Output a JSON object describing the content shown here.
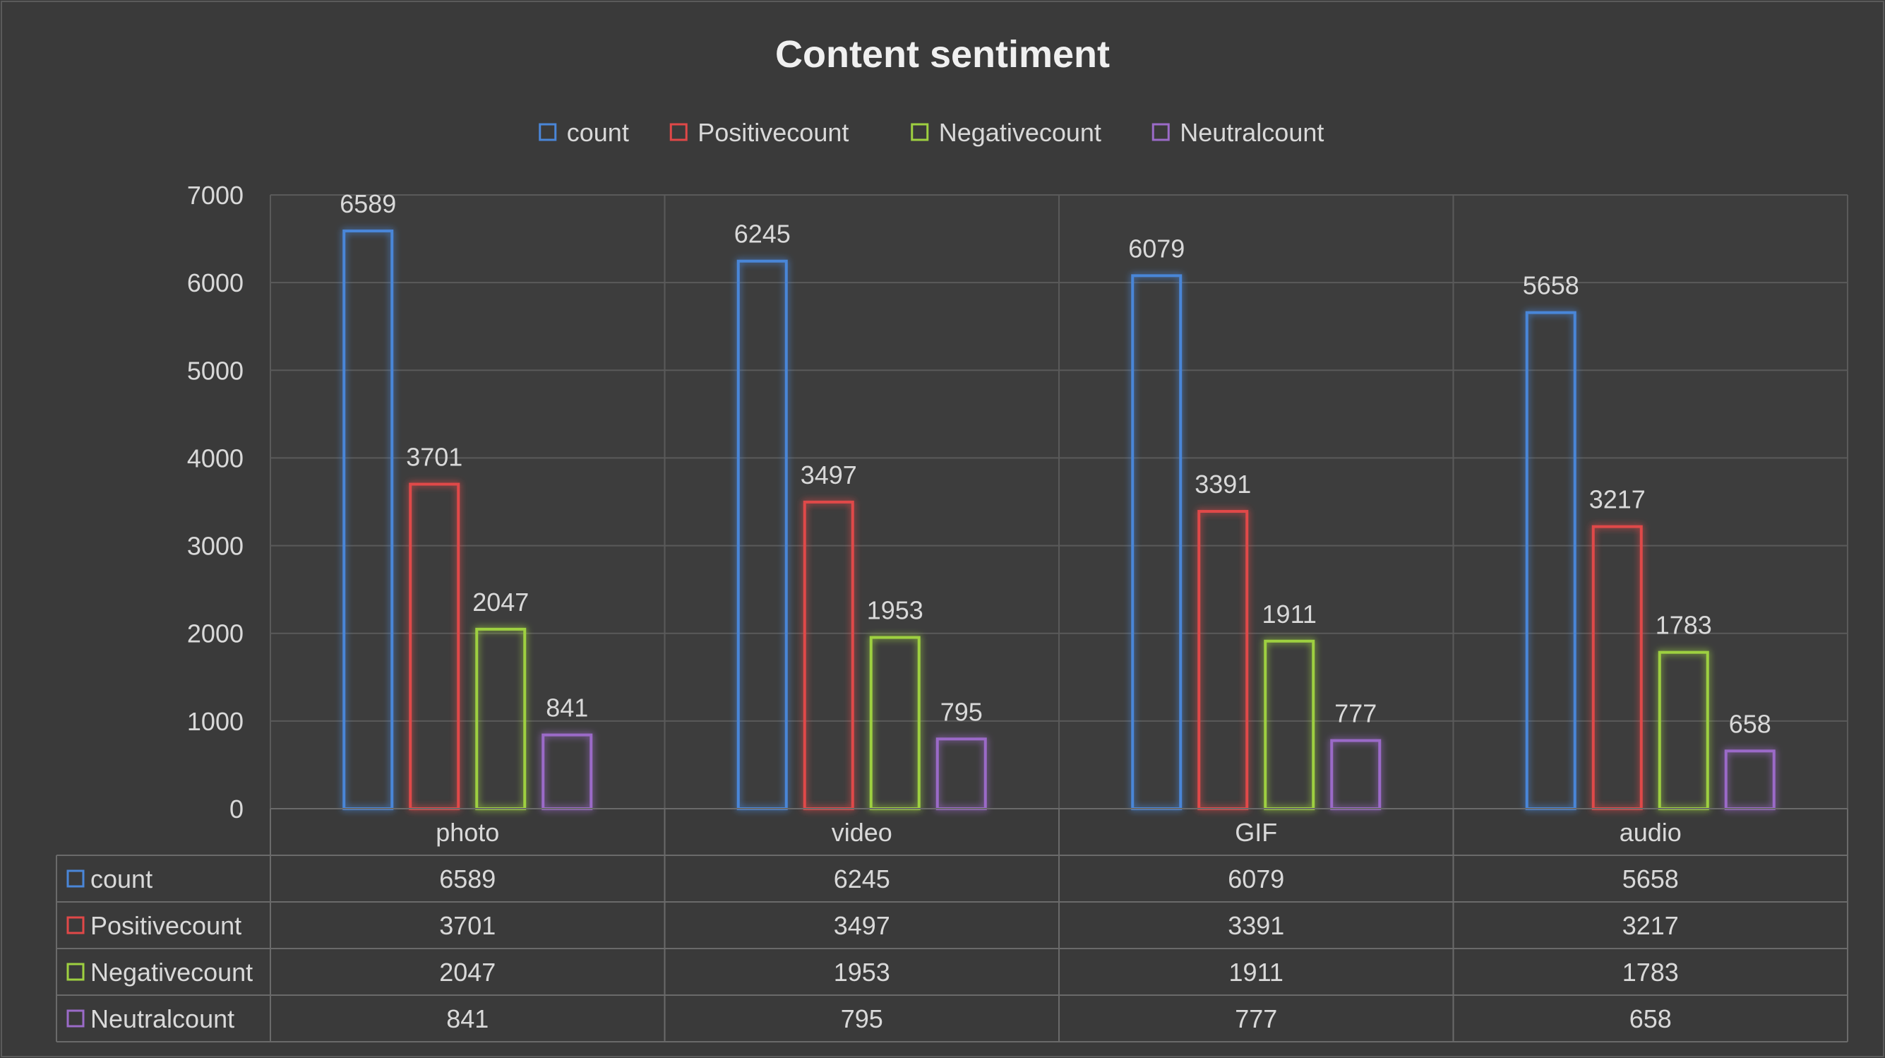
{
  "chart_data": {
    "type": "bar",
    "title": "Content sentiment",
    "categories": [
      "photo",
      "video",
      "GIF",
      "audio"
    ],
    "series": [
      {
        "name": "count",
        "values": [
          6589,
          6245,
          6079,
          5658
        ],
        "color": "#4a86d8"
      },
      {
        "name": "Positivecount",
        "values": [
          3701,
          3497,
          3391,
          3217
        ],
        "color": "#e04848"
      },
      {
        "name": "Negativecount",
        "values": [
          2047,
          1953,
          1911,
          1783
        ],
        "color": "#9ed040"
      },
      {
        "name": "Neutralcount",
        "values": [
          841,
          795,
          777,
          658
        ],
        "color": "#9b6bc8"
      }
    ],
    "ylim": [
      0,
      7000
    ],
    "yticks": [
      0,
      1000,
      2000,
      3000,
      4000,
      5000,
      6000,
      7000
    ],
    "grid": true,
    "legend": "top",
    "data_table": true,
    "bar_style": "outlined with glow"
  },
  "colors": {
    "background": "#3a3a3a",
    "plot_background": "#3d3d3d",
    "gridline": "#5a5a5a",
    "text": "#d9d9d9",
    "title": "#f0f0f0"
  }
}
